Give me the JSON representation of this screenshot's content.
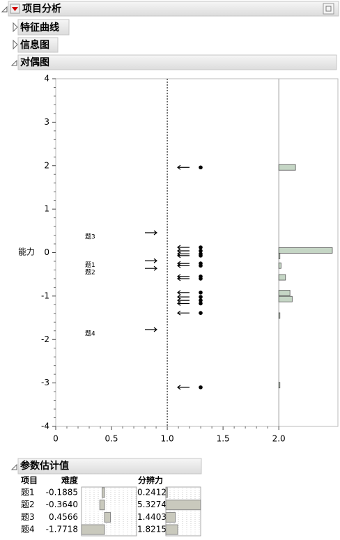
{
  "outline": {
    "title": "项目分析",
    "sections": [
      "特征曲线",
      "信息图",
      "对偶图",
      "参数估计值"
    ]
  },
  "chart_data": {
    "type": "dual",
    "ylabel": "能力",
    "xlim": [
      0,
      2.53
    ],
    "ylim": [
      -4,
      4
    ],
    "xticks": [
      0,
      0.5,
      {
        "value": 1,
        "label": "1.0"
      },
      1.5,
      {
        "value": 2,
        "label": "2.0"
      }
    ],
    "yticks": [
      -4,
      -3,
      -2,
      -1,
      0,
      1,
      2,
      3,
      4
    ],
    "categories": [
      "题1",
      "题2",
      "题3",
      "题4"
    ],
    "values": [
      -0.1885,
      -0.364,
      0.4566,
      -1.7718
    ],
    "ability": [
      1.96,
      0.12,
      0.04,
      -0.03,
      -0.07,
      -0.25,
      -0.3,
      -0.55,
      -0.6,
      -0.92,
      -1.02,
      -1.1,
      -1.17,
      -1.39,
      -3.1
    ],
    "histogram": {
      "y": [
        1.96,
        0.05,
        -0.08,
        -0.3,
        -0.57,
        -0.93,
        -1.07,
        -1.45,
        -3.05
      ],
      "values": [
        0.15,
        0.48,
        0.01,
        0.02,
        0.06,
        0.1,
        0.12,
        0.01,
        0.01
      ]
    }
  },
  "parameters": {
    "columns": [
      "项目",
      "难度",
      "分辨力"
    ],
    "rows": [
      [
        "题1",
        -0.1885,
        0.2412
      ],
      [
        "题2",
        {
          "value": -0.364,
          "label": "-0.3640"
        },
        5.3274
      ],
      [
        "题3",
        0.4566,
        1.4403
      ],
      [
        "题4",
        -1.7718,
        1.8215
      ]
    ]
  }
}
